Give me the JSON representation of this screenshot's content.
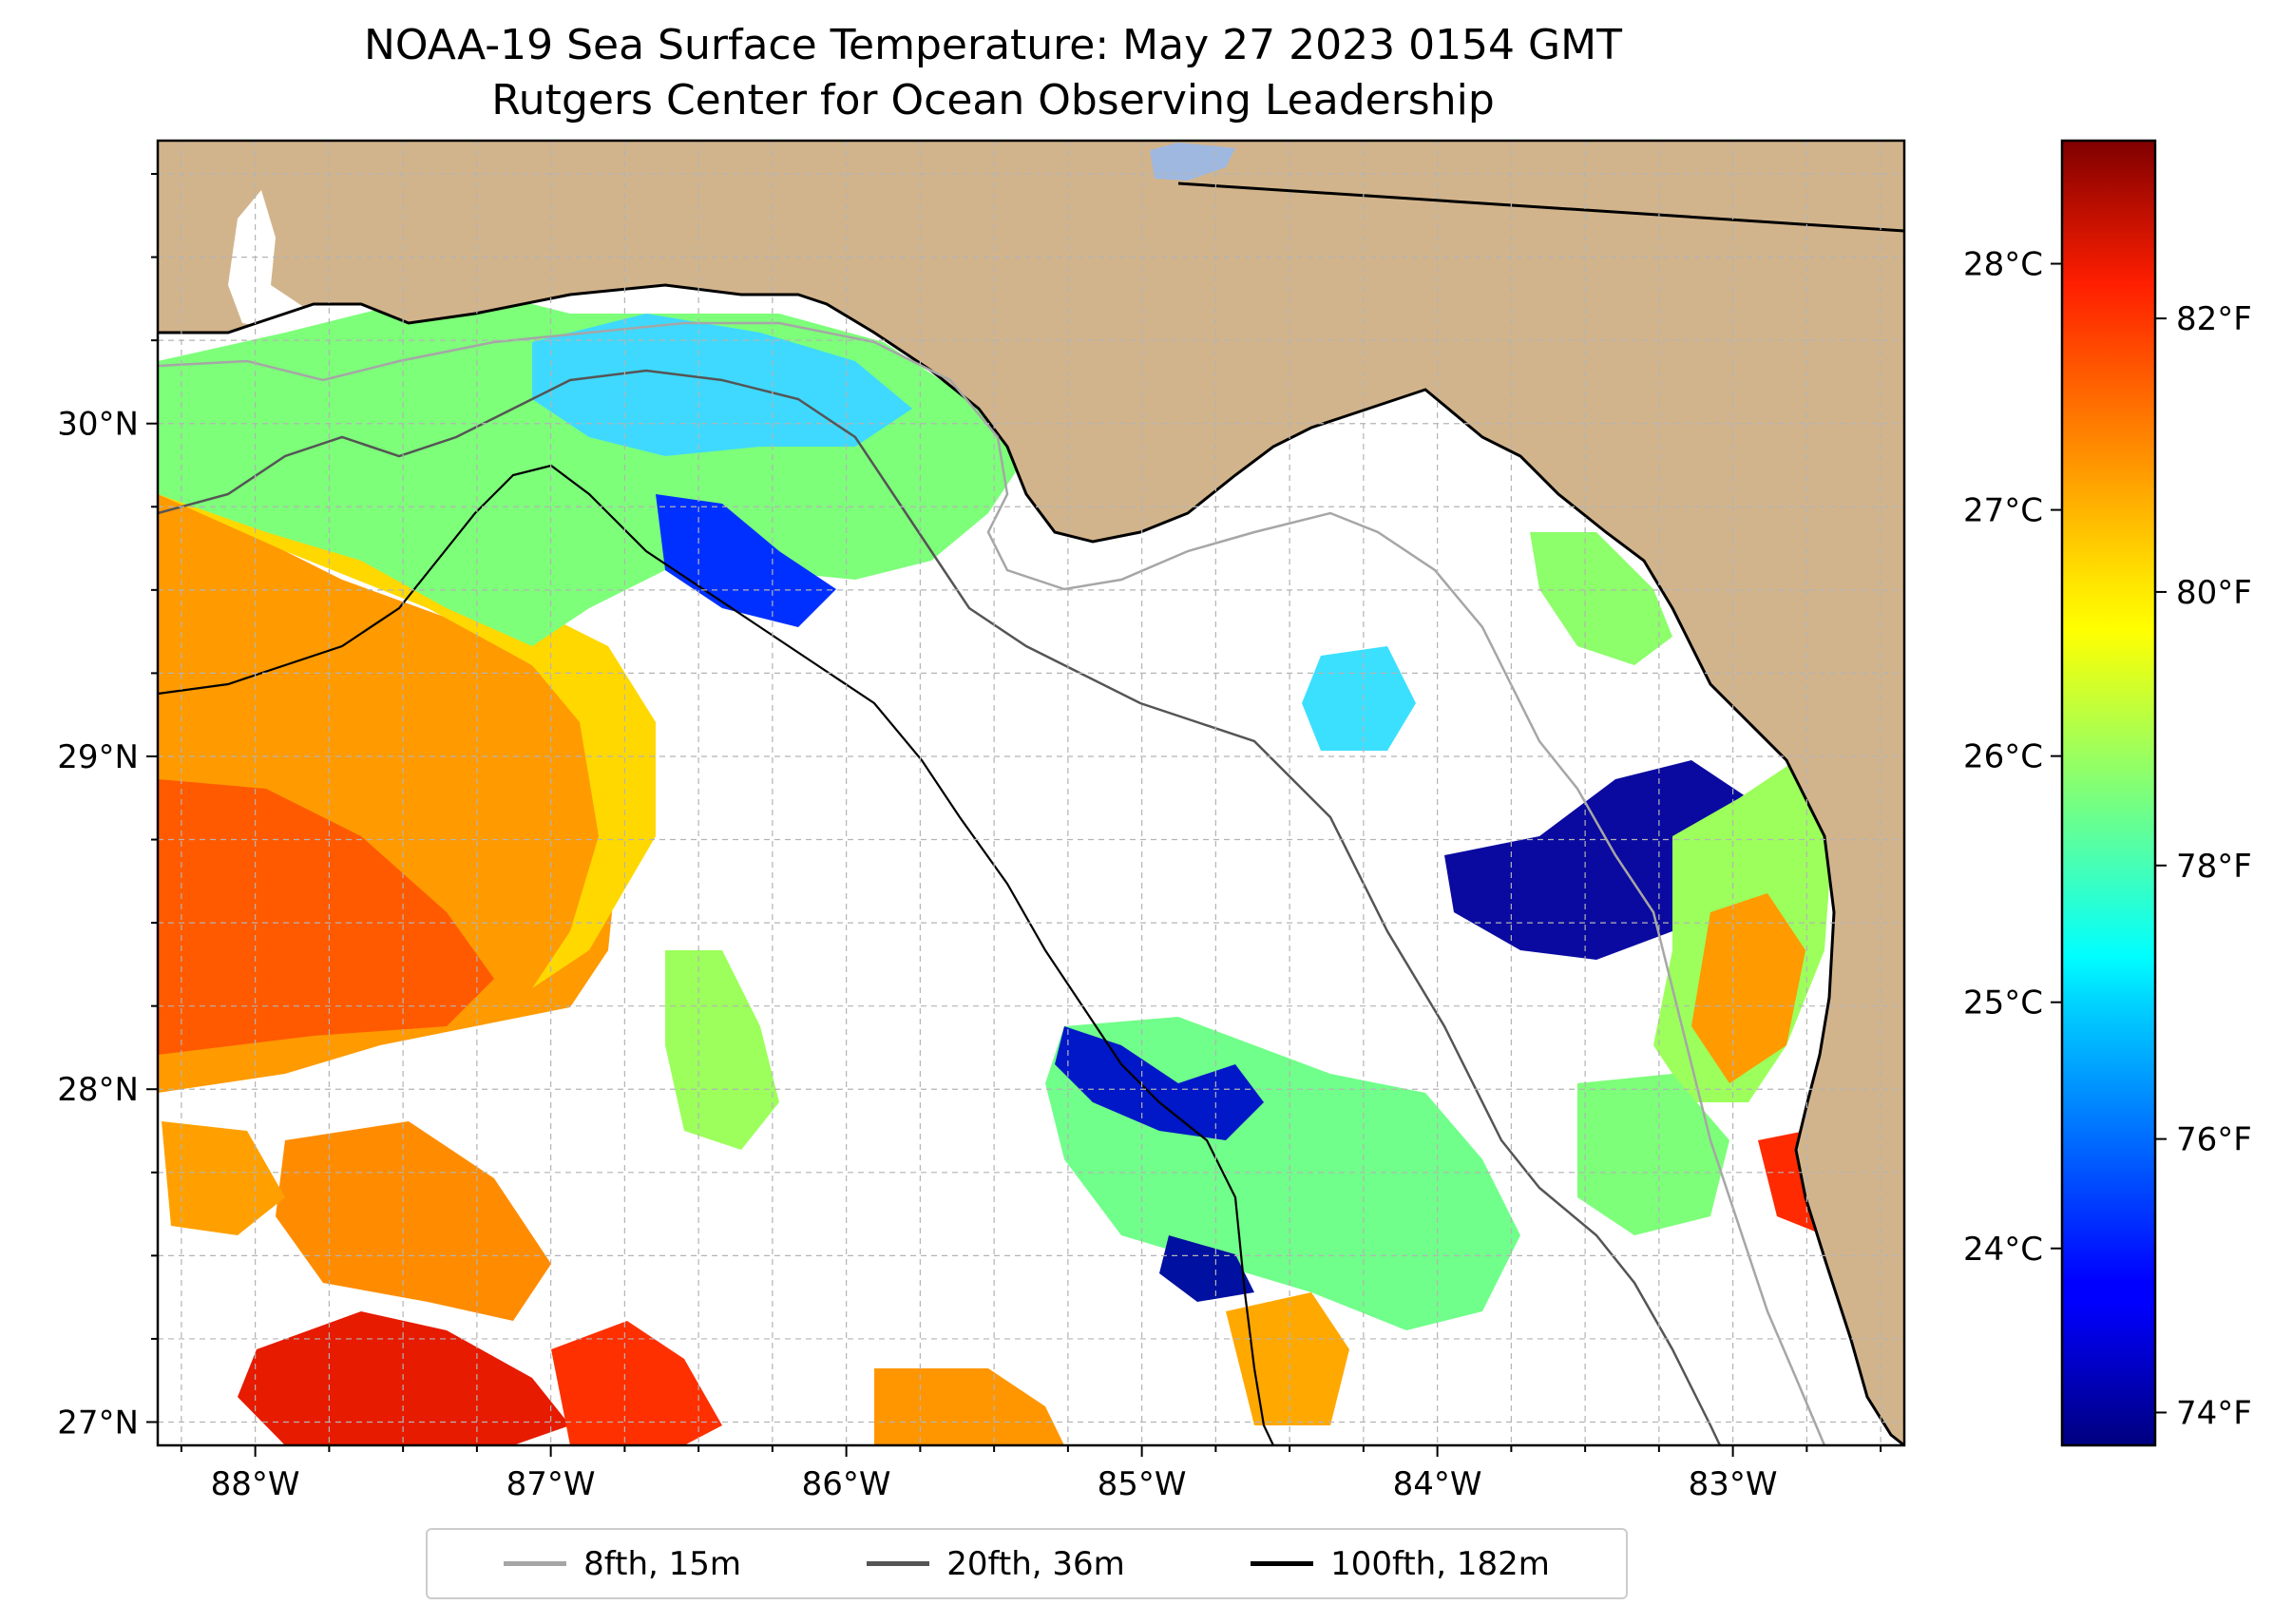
{
  "title": {
    "line1": "NOAA-19 Sea Surface Temperature: May 27 2023 0154 GMT",
    "line2": "Rutgers Center for Ocean Observing Leadership"
  },
  "map": {
    "lon_range": [
      -88.33,
      -82.42
    ],
    "lat_range": [
      26.93,
      30.85
    ],
    "lon_ticks": [
      {
        "value": -88,
        "label": "88°W"
      },
      {
        "value": -87,
        "label": "87°W"
      },
      {
        "value": -86,
        "label": "86°W"
      },
      {
        "value": -85,
        "label": "85°W"
      },
      {
        "value": -84,
        "label": "84°W"
      },
      {
        "value": -83,
        "label": "83°W"
      }
    ],
    "lat_ticks": [
      {
        "value": 27,
        "label": "27°N"
      },
      {
        "value": 28,
        "label": "28°N"
      },
      {
        "value": 29,
        "label": "29°N"
      },
      {
        "value": 30,
        "label": "30°N"
      }
    ],
    "colors": {
      "land": "#d2b48c",
      "ocean_nodata": "#ffffff",
      "lake": "#9fb8e0",
      "grid": "#b4b4b4"
    }
  },
  "colorbar": {
    "colormap": "jet",
    "range_c": [
      23.2,
      28.5
    ],
    "celsius_ticks": [
      {
        "value": 24,
        "label": "24°C"
      },
      {
        "value": 25,
        "label": "25°C"
      },
      {
        "value": 26,
        "label": "26°C"
      },
      {
        "value": 27,
        "label": "27°C"
      },
      {
        "value": 28,
        "label": "28°C"
      }
    ],
    "fahrenheit_ticks": [
      {
        "value": 74,
        "label": "74°F"
      },
      {
        "value": 76,
        "label": "76°F"
      },
      {
        "value": 78,
        "label": "78°F"
      },
      {
        "value": 80,
        "label": "80°F"
      },
      {
        "value": 82,
        "label": "82°F"
      }
    ]
  },
  "legend": {
    "items": [
      {
        "label": "8fth, 15m",
        "color": "#a6a6a6"
      },
      {
        "label": "20fth, 36m",
        "color": "#555555"
      },
      {
        "label": "100fth, 182m",
        "color": "#000000"
      }
    ]
  }
}
